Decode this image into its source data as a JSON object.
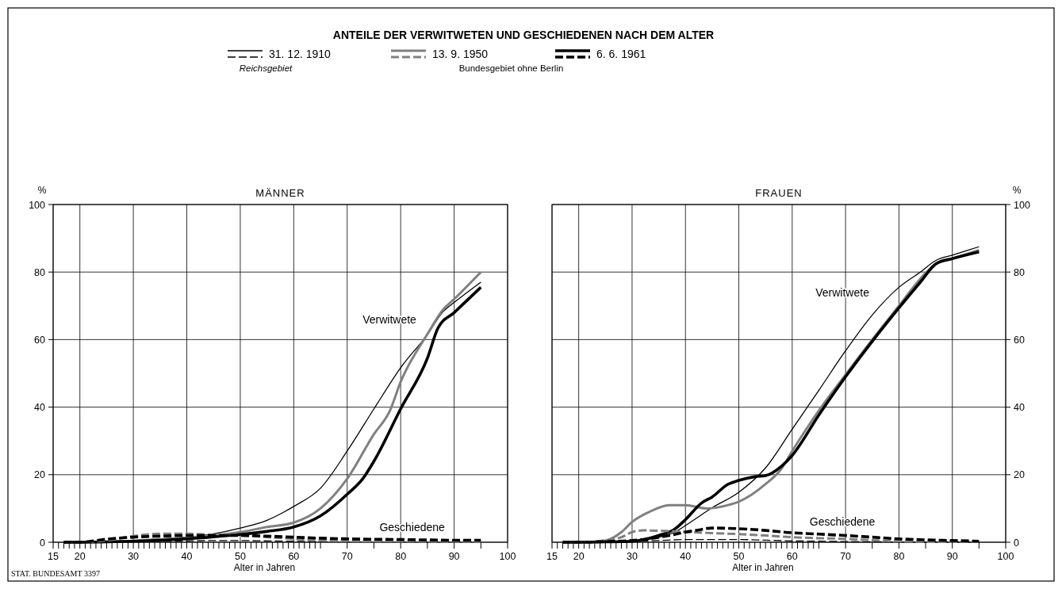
{
  "chart_data": [
    {
      "type": "line",
      "title": "ANTEILE DER VERWITWETEN UND GESCHIEDENEN NACH DEM ALTER",
      "subtitle": "MÄNNER",
      "xlabel": "Alter in Jahren",
      "ylabel": "%",
      "legend": "top",
      "grid": true,
      "xlim": [
        15,
        100
      ],
      "xticks": [
        15,
        {
          "value": 16,
          "label": null
        },
        {
          "value": 17,
          "label": null
        },
        {
          "value": 18,
          "label": null
        },
        {
          "value": 19,
          "label": null
        },
        20,
        {
          "value": 21,
          "label": null
        },
        {
          "value": 22,
          "label": null
        },
        {
          "value": 23,
          "label": null
        },
        {
          "value": 24,
          "label": null
        },
        {
          "value": 25,
          "label": null
        },
        {
          "value": 26,
          "label": null
        },
        {
          "value": 27,
          "label": null
        },
        {
          "value": 28,
          "label": null
        },
        {
          "value": 29,
          "label": null
        },
        30,
        {
          "value": 31,
          "label": null
        },
        {
          "value": 32,
          "label": null
        },
        {
          "value": 33,
          "label": null
        },
        {
          "value": 34,
          "label": null
        },
        {
          "value": 35,
          "label": null
        },
        {
          "value": 36,
          "label": null
        },
        {
          "value": 37,
          "label": null
        },
        {
          "value": 38,
          "label": null
        },
        {
          "value": 39,
          "label": null
        },
        40,
        {
          "value": 41,
          "label": null
        },
        {
          "value": 42,
          "label": null
        },
        {
          "value": 43,
          "label": null
        },
        {
          "value": 44,
          "label": null
        },
        {
          "value": 45,
          "label": null
        },
        {
          "value": 46,
          "label": null
        },
        {
          "value": 47,
          "label": null
        },
        {
          "value": 48,
          "label": null
        },
        {
          "value": 49,
          "label": null
        },
        50,
        {
          "value": 51,
          "label": null
        },
        {
          "value": 52,
          "label": null
        },
        {
          "value": 53,
          "label": null
        },
        {
          "value": 54,
          "label": null
        },
        {
          "value": 55,
          "label": null
        },
        {
          "value": 56,
          "label": null
        },
        {
          "value": 57,
          "label": null
        },
        {
          "value": 58,
          "label": null
        },
        {
          "value": 59,
          "label": null
        },
        60,
        {
          "value": 61,
          "label": null
        },
        {
          "value": 62,
          "label": null
        },
        {
          "value": 63,
          "label": null
        },
        {
          "value": 64,
          "label": null
        },
        {
          "value": 65,
          "label": null
        },
        70,
        {
          "value": 75,
          "label": null
        },
        80,
        {
          "value": 85,
          "label": null
        },
        90,
        {
          "value": 95,
          "label": null
        },
        100
      ],
      "ylim": [
        0,
        100
      ],
      "yticks": [
        0,
        20,
        40,
        60,
        80,
        100
      ],
      "annotations": [
        "Reichsgebiet",
        "Bundesgebiet ohne Berlin",
        "Verwitwete",
        "Geschiedene",
        "STAT. BUNDESAMT 3397"
      ],
      "series": [
        {
          "name": "31. 12. 1910",
          "color": "#000000",
          "x": [
            17,
            20,
            25,
            30,
            35,
            40,
            45,
            50,
            55,
            58,
            60,
            65,
            70,
            75,
            80,
            85,
            88,
            90,
            95
          ],
          "values": [
            0,
            0,
            0.2,
            0.5,
            1,
            1.5,
            2.5,
            4.2,
            6.5,
            8.8,
            10.6,
            16,
            27,
            39.5,
            51.7,
            61.5,
            68.4,
            71,
            77
          ]
        },
        {
          "name": "13. 9. 1950",
          "color": "#808080",
          "x": [
            17,
            20,
            25,
            30,
            35,
            40,
            45,
            50,
            55,
            60,
            65,
            70,
            75,
            78,
            80,
            85,
            88,
            90,
            95
          ],
          "values": [
            0,
            0,
            0.1,
            0.4,
            0.8,
            1.3,
            2,
            3,
            4.5,
            5.8,
            10,
            18.8,
            32,
            39,
            47.5,
            61.6,
            69,
            72,
            80
          ]
        },
        {
          "name": "6. 6. 1961",
          "color": "#000000",
          "x": [
            17,
            20,
            25,
            30,
            35,
            40,
            45,
            50,
            55,
            60,
            65,
            70,
            73,
            75,
            80,
            85,
            87,
            90,
            95
          ],
          "values": [
            0,
            0,
            0.1,
            0.3,
            0.6,
            1,
            1.6,
            2.3,
            3.2,
            4.5,
            7.8,
            14.2,
            19,
            24,
            39.5,
            54.5,
            63.5,
            68,
            75.5
          ]
        },
        {
          "color": "#000000",
          "line_style": "dashed",
          "x": [
            17,
            20,
            25,
            30,
            35,
            40,
            45,
            50,
            55,
            60,
            65,
            70,
            80,
            90,
            95
          ],
          "values": [
            0,
            0,
            0.1,
            0.2,
            0.3,
            0.4,
            0.5,
            0.5,
            0.4,
            0.3,
            0.2,
            0.2,
            0.1,
            0.1,
            0.1
          ]
        },
        {
          "color": "#808080",
          "line_style": "dashed",
          "x": [
            17,
            20,
            25,
            30,
            35,
            40,
            45,
            50,
            55,
            60,
            65,
            70,
            80,
            90,
            95
          ],
          "values": [
            0,
            0,
            0.5,
            1.8,
            2.5,
            2.5,
            2.2,
            2,
            1.5,
            1,
            0.5,
            0.4,
            0.3,
            0.2,
            0.2
          ]
        },
        {
          "color": "#000000",
          "line_style": "dashed",
          "x": [
            17,
            20,
            22,
            25,
            30,
            35,
            40,
            45,
            50,
            55,
            60,
            65,
            70,
            80,
            90,
            95
          ],
          "values": [
            0,
            0,
            0.3,
            0.9,
            1.5,
            1.8,
            2,
            2,
            2,
            1.8,
            1.5,
            1.2,
            1,
            0.8,
            0.6,
            0.6
          ]
        }
      ]
    },
    {
      "type": "line",
      "subtitle": "FRAUEN",
      "xlabel": "Alter in Jahren",
      "y2label": "%",
      "grid": true,
      "xlim": [
        15,
        100
      ],
      "xticks": [
        15,
        {
          "value": 16,
          "label": null
        },
        {
          "value": 17,
          "label": null
        },
        {
          "value": 18,
          "label": null
        },
        {
          "value": 19,
          "label": null
        },
        20,
        {
          "value": 21,
          "label": null
        },
        {
          "value": 22,
          "label": null
        },
        {
          "value": 23,
          "label": null
        },
        {
          "value": 24,
          "label": null
        },
        {
          "value": 25,
          "label": null
        },
        {
          "value": 26,
          "label": null
        },
        {
          "value": 27,
          "label": null
        },
        {
          "value": 28,
          "label": null
        },
        {
          "value": 29,
          "label": null
        },
        30,
        {
          "value": 31,
          "label": null
        },
        {
          "value": 32,
          "label": null
        },
        {
          "value": 33,
          "label": null
        },
        {
          "value": 34,
          "label": null
        },
        {
          "value": 35,
          "label": null
        },
        {
          "value": 36,
          "label": null
        },
        {
          "value": 37,
          "label": null
        },
        {
          "value": 38,
          "label": null
        },
        {
          "value": 39,
          "label": null
        },
        40,
        {
          "value": 41,
          "label": null
        },
        {
          "value": 42,
          "label": null
        },
        {
          "value": 43,
          "label": null
        },
        {
          "value": 44,
          "label": null
        },
        {
          "value": 45,
          "label": null
        },
        {
          "value": 46,
          "label": null
        },
        {
          "value": 47,
          "label": null
        },
        {
          "value": 48,
          "label": null
        },
        {
          "value": 49,
          "label": null
        },
        50,
        {
          "value": 51,
          "label": null
        },
        {
          "value": 52,
          "label": null
        },
        {
          "value": 53,
          "label": null
        },
        {
          "value": 54,
          "label": null
        },
        {
          "value": 55,
          "label": null
        },
        {
          "value": 56,
          "label": null
        },
        {
          "value": 57,
          "label": null
        },
        {
          "value": 58,
          "label": null
        },
        {
          "value": 59,
          "label": null
        },
        60,
        {
          "value": 61,
          "label": null
        },
        {
          "value": 62,
          "label": null
        },
        {
          "value": 63,
          "label": null
        },
        {
          "value": 64,
          "label": null
        },
        {
          "value": 65,
          "label": null
        },
        70,
        {
          "value": 75,
          "label": null
        },
        80,
        {
          "value": 85,
          "label": null
        },
        90,
        {
          "value": 95,
          "label": null
        },
        100
      ],
      "y2lim": [
        0,
        100
      ],
      "y2ticks": [
        0,
        20,
        40,
        60,
        80,
        100
      ],
      "annotations": [
        "Verwitwete",
        "Geschiedene"
      ],
      "series": [
        {
          "color": "#000000",
          "axis": "y2",
          "x": [
            17,
            20,
            25,
            30,
            35,
            38,
            41,
            45,
            50,
            55,
            60,
            65,
            70,
            75,
            80,
            84,
            87,
            90,
            95
          ],
          "values": [
            0,
            0,
            0.1,
            0.3,
            1.5,
            3,
            6,
            10.2,
            14.8,
            22,
            33.5,
            45,
            56.7,
            67.3,
            75.5,
            80,
            83.5,
            85,
            87.5
          ]
        },
        {
          "color": "#808080",
          "axis": "y2",
          "x": [
            17,
            20,
            25,
            28,
            30,
            33,
            37,
            40,
            44,
            48,
            50,
            55,
            58,
            60,
            65,
            70,
            75,
            80,
            84,
            87,
            90,
            95
          ],
          "values": [
            0,
            0,
            0.5,
            3,
            6,
            8.8,
            11,
            11,
            10,
            11,
            12,
            17.2,
            21.8,
            27,
            39,
            49.6,
            60,
            70,
            78,
            82.5,
            84,
            86.5
          ]
        },
        {
          "color": "#000000",
          "axis": "y2",
          "x": [
            17,
            20,
            25,
            30,
            35,
            38,
            40,
            43,
            45,
            48,
            50,
            53,
            55,
            58,
            60,
            65,
            70,
            75,
            80,
            84,
            87,
            90,
            95
          ],
          "values": [
            0,
            0,
            0.1,
            0.3,
            2,
            3.9,
            6.7,
            11.6,
            13.4,
            17.2,
            18.3,
            19.4,
            19.7,
            22.5,
            25.7,
            37.7,
            49,
            59.5,
            69.4,
            77,
            82.5,
            84,
            86
          ]
        },
        {
          "color": "#000000",
          "line_style": "dashed",
          "axis": "y2",
          "x": [
            17,
            20,
            25,
            30,
            35,
            40,
            45,
            50,
            55,
            60,
            65,
            70,
            80,
            90,
            95
          ],
          "values": [
            0,
            0,
            0.1,
            0.3,
            0.5,
            0.8,
            0.8,
            0.8,
            0.6,
            0.4,
            0.3,
            0.2,
            0.1,
            0.1,
            0.1
          ]
        },
        {
          "color": "#808080",
          "line_style": "dashed",
          "axis": "y2",
          "x": [
            17,
            20,
            25,
            28,
            30,
            32,
            35,
            38,
            45,
            50,
            55,
            60,
            65,
            70,
            75,
            80,
            90,
            95
          ],
          "values": [
            0,
            0,
            0.5,
            1.5,
            3,
            3.5,
            3.4,
            3.2,
            2.7,
            2.4,
            2,
            1.5,
            1.2,
            1,
            0.6,
            0.3,
            0.1,
            0.1
          ]
        },
        {
          "color": "#000000",
          "line_style": "dashed",
          "axis": "y2",
          "x": [
            17,
            20,
            25,
            30,
            33,
            37,
            40,
            42,
            45,
            50,
            55,
            60,
            65,
            70,
            75,
            80,
            85,
            90,
            95
          ],
          "values": [
            0,
            0,
            0.2,
            0.5,
            1,
            2,
            3,
            3.5,
            4.2,
            4,
            3.5,
            2.8,
            2.4,
            2,
            1.5,
            1,
            0.7,
            0.5,
            0.3
          ]
        }
      ]
    }
  ]
}
